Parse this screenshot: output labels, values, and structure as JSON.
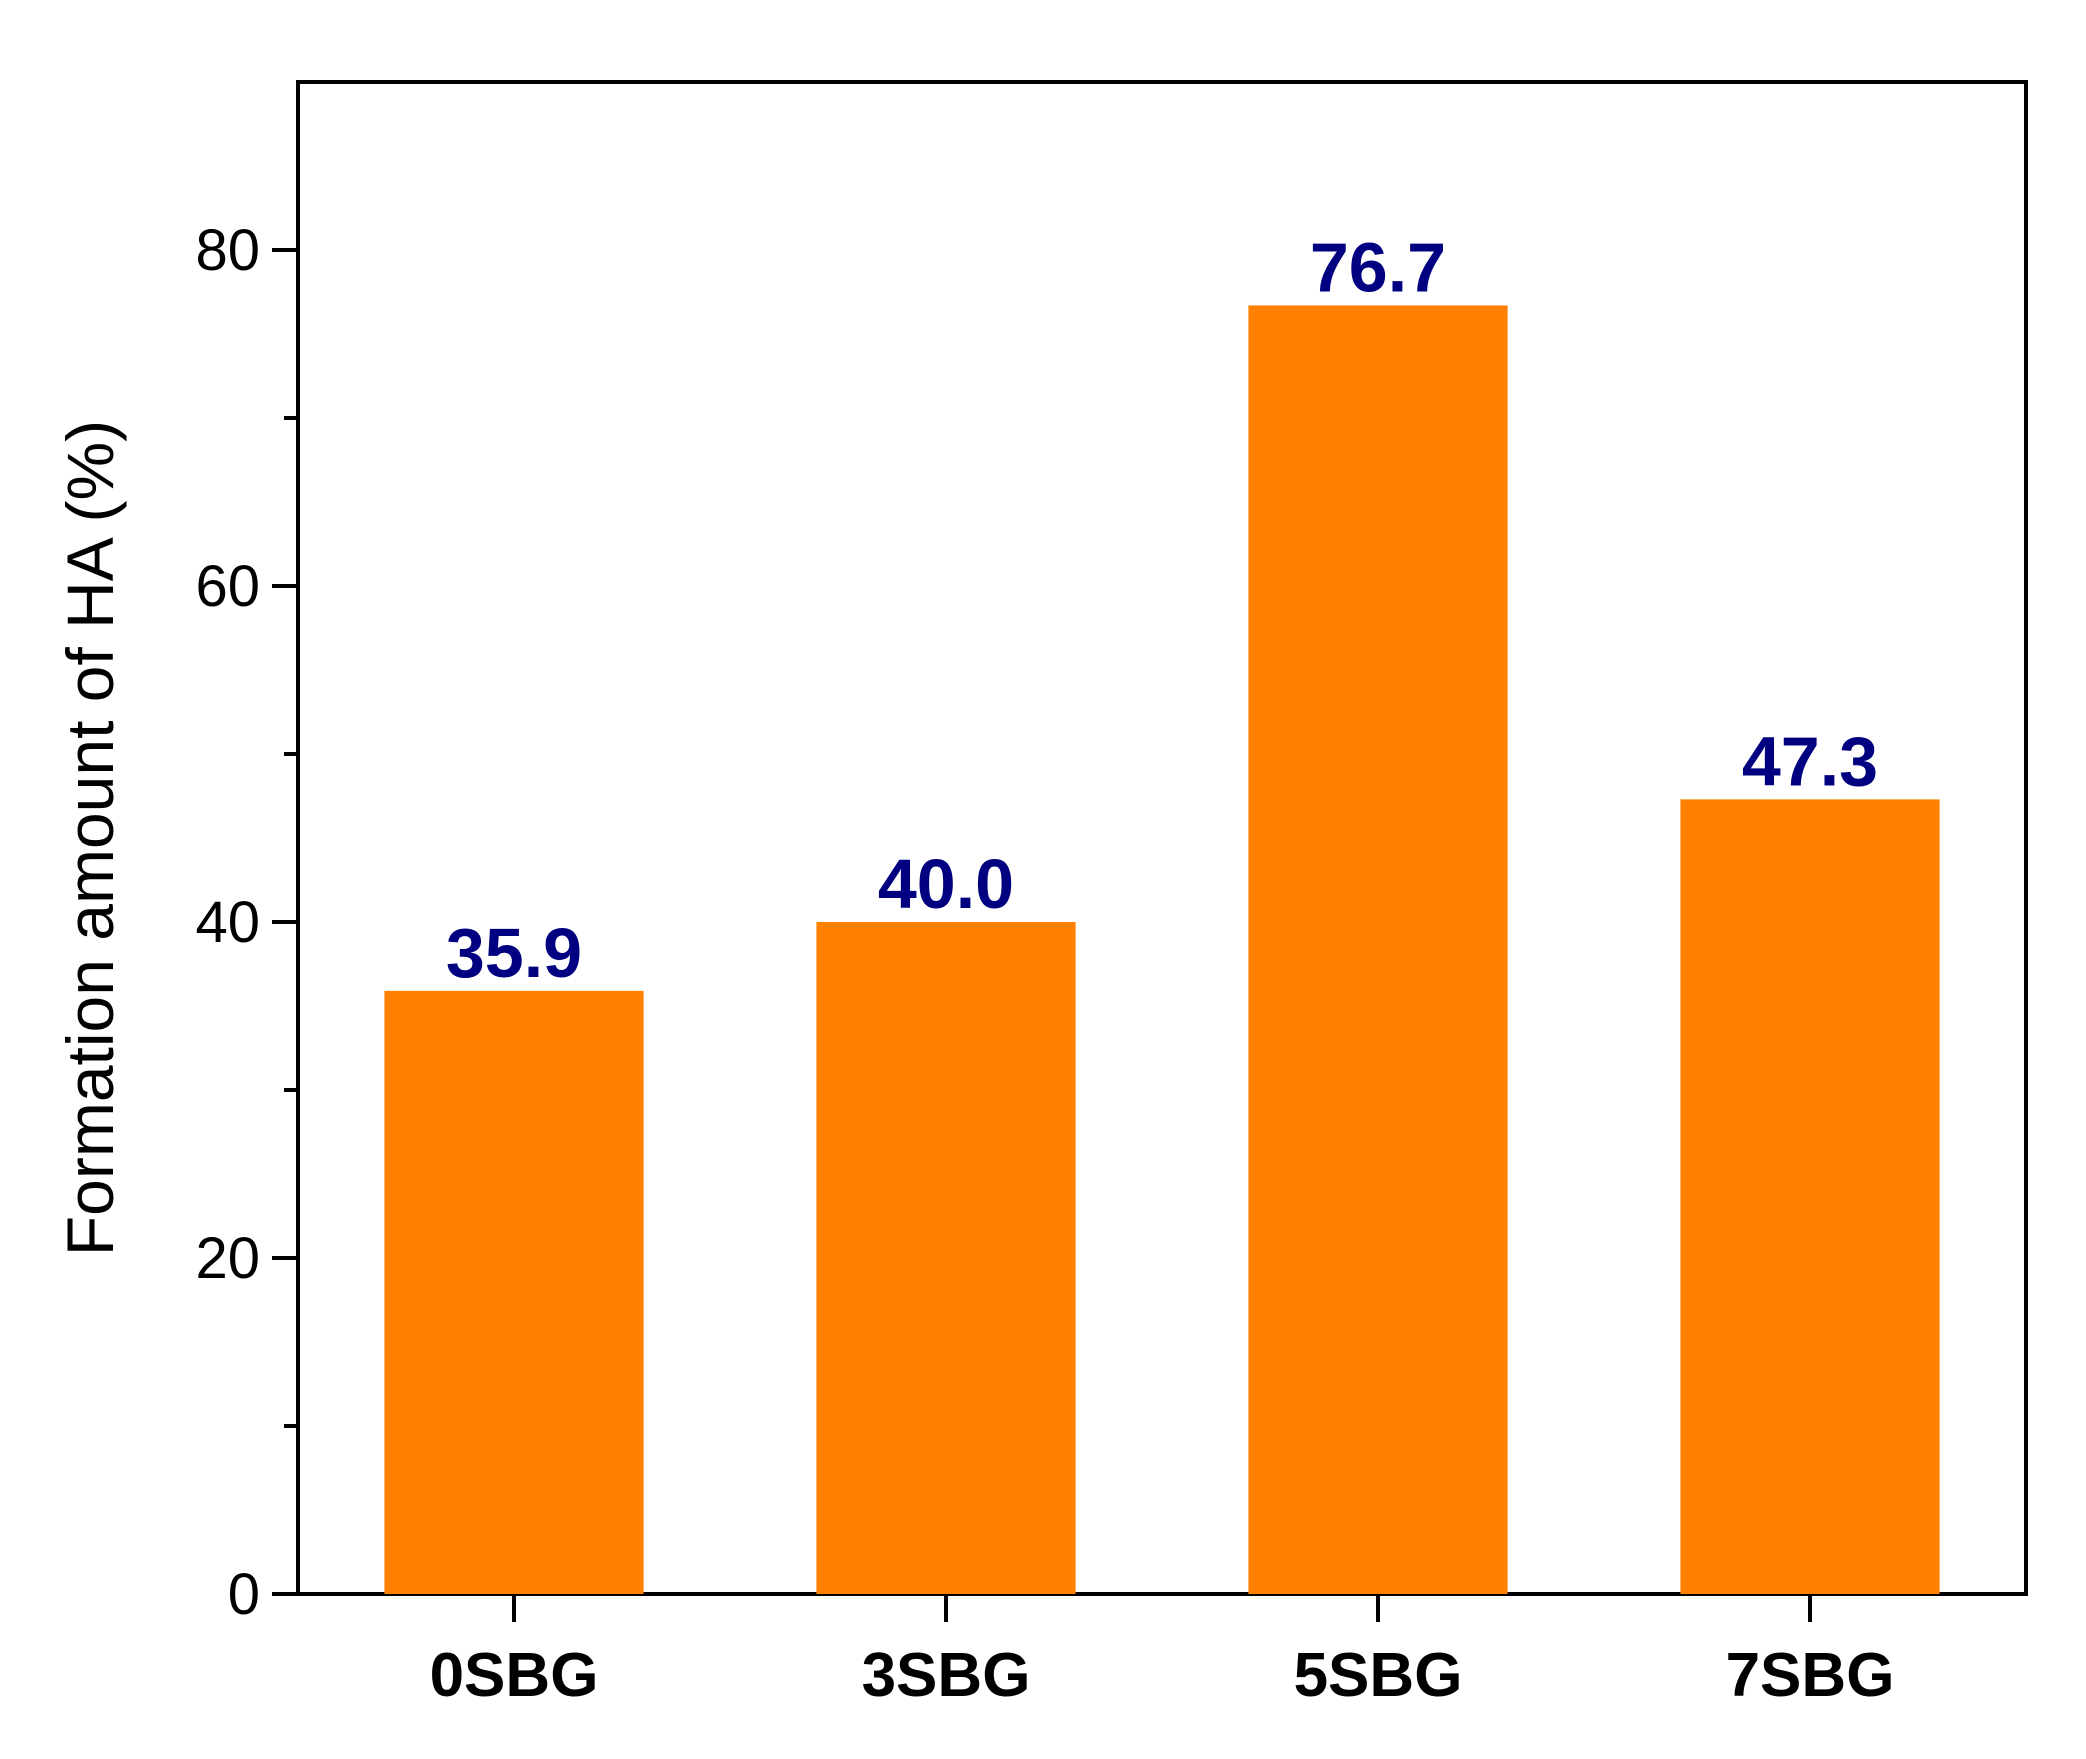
{
  "chart_data": {
    "type": "bar",
    "categories": [
      "0SBG",
      "3SBG",
      "5SBG",
      "7SBG"
    ],
    "values": [
      35.9,
      40.0,
      76.7,
      47.3
    ],
    "data_labels": [
      "35.9",
      "40.0",
      "76.7",
      "47.3"
    ],
    "title": "",
    "xlabel": "",
    "ylabel": "Formation amount of HA (%)",
    "ylim": [
      0,
      90
    ],
    "yticks": [
      0,
      20,
      40,
      60,
      80
    ],
    "ytick_labels": [
      "0",
      "20",
      "40",
      "60",
      "80"
    ],
    "minor_yticks": [
      10,
      30,
      50,
      70
    ],
    "grid": false,
    "legend": "none",
    "bar_color": "#ff8000",
    "label_color": "#000080"
  }
}
